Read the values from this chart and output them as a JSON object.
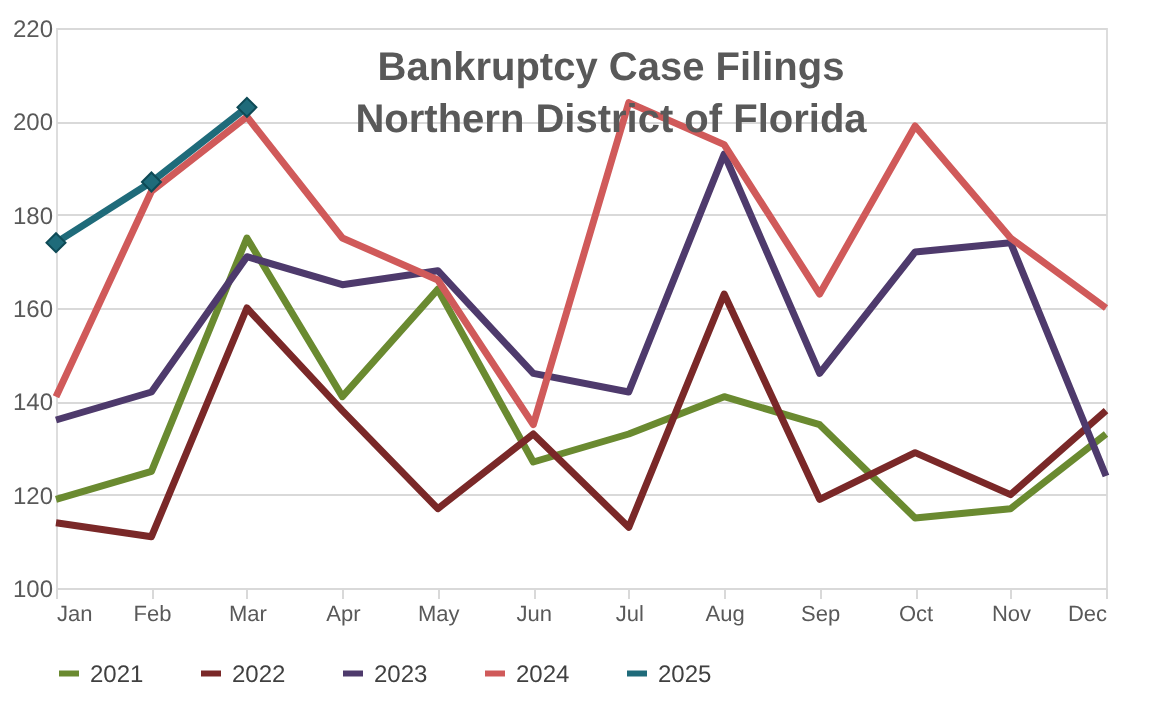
{
  "chart_data": {
    "type": "line",
    "title": "Bankruptcy Case Filings\nNorthern District of Florida",
    "categories": [
      "Jan",
      "Feb",
      "Mar",
      "Apr",
      "May",
      "Jun",
      "Jul",
      "Aug",
      "Sep",
      "Oct",
      "Nov",
      "Dec"
    ],
    "series": [
      {
        "name": "2021",
        "color": "#6a8a30",
        "values": [
          119,
          125,
          175,
          141,
          164,
          127,
          133,
          141,
          135,
          115,
          117,
          133
        ]
      },
      {
        "name": "2022",
        "color": "#7a2828",
        "values": [
          114,
          111,
          160,
          138,
          117,
          133,
          113,
          163,
          119,
          129,
          120,
          138
        ]
      },
      {
        "name": "2023",
        "color": "#4e3a6c",
        "values": [
          136,
          142,
          171,
          165,
          168,
          146,
          142,
          193,
          146,
          172,
          174,
          124
        ]
      },
      {
        "name": "2024",
        "color": "#d05a5a",
        "values": [
          141,
          185,
          201,
          175,
          166,
          135,
          204,
          195,
          163,
          199,
          175,
          160
        ]
      },
      {
        "name": "2025",
        "color": "#1f6b7a",
        "marker": "diamond",
        "values": [
          174,
          187,
          203,
          null,
          null,
          null,
          null,
          null,
          null,
          null,
          null,
          null
        ]
      }
    ],
    "ylim": [
      100,
      220
    ],
    "yticks": [
      100,
      120,
      140,
      160,
      180,
      200,
      220
    ],
    "grid": "y",
    "legend": "bottom",
    "marker": "none",
    "line_style": "solid"
  }
}
